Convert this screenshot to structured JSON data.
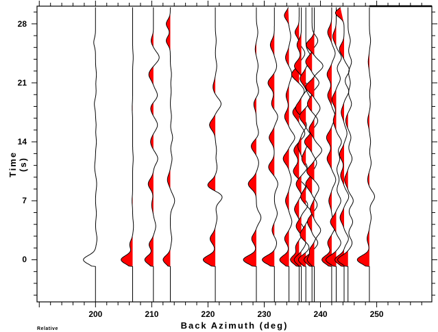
{
  "chart_data": {
    "type": "line",
    "subtype": "seismic-record-section (wiggle traces, negative lobes filled red)",
    "title": "",
    "xlabel": "Back Azimuth (deg)",
    "ylabel": "Time (s)",
    "footnote": "Relative",
    "xlim": [
      189.6,
      259.8
    ],
    "ylim": [
      -5.0,
      30.1
    ],
    "x_ticks": [
      200,
      210,
      220,
      230,
      240,
      250
    ],
    "y_ticks": [
      0,
      7,
      14,
      21,
      28
    ],
    "x_minor_step": 2,
    "y_minor_step": 1.4,
    "grid": false,
    "fill_color": "#ff0000",
    "line_color": "#000000",
    "traces": [
      {
        "baz": 200.0,
        "fill": false,
        "top": 30,
        "pulses": [
          [
            0,
            -4.2,
            0.5
          ],
          [
            2.5,
            0.5,
            0.6
          ],
          [
            5.5,
            0.3,
            0.6
          ],
          [
            9,
            0.4,
            0.7
          ],
          [
            11,
            -0.3,
            0.6
          ],
          [
            14,
            0.3,
            0.6
          ],
          [
            16,
            0.2,
            0.5
          ],
          [
            18.5,
            -0.4,
            0.5
          ],
          [
            20,
            0.2,
            0.6
          ],
          [
            22,
            0.3,
            0.6
          ],
          [
            25.8,
            -0.6,
            0.5
          ]
        ]
      },
      {
        "baz": 206.6,
        "fill": true,
        "top": 30,
        "pulses": [
          [
            0,
            -4.0,
            0.5
          ],
          [
            1.8,
            -1.0,
            0.5
          ],
          [
            4,
            0.3,
            0.6
          ],
          [
            7,
            -0.2,
            0.5
          ],
          [
            12,
            0.2,
            0.6
          ],
          [
            18,
            -0.15,
            0.6
          ],
          [
            24,
            0.2,
            0.6
          ]
        ]
      },
      {
        "baz": 210.3,
        "fill": true,
        "top": 30,
        "pulses": [
          [
            0,
            -3.0,
            0.5
          ],
          [
            1.8,
            -1.5,
            0.5
          ],
          [
            4,
            0.8,
            0.6
          ],
          [
            6.5,
            -0.6,
            0.6
          ],
          [
            9,
            -1.8,
            0.6
          ],
          [
            12,
            1.5,
            0.6
          ],
          [
            14,
            -1.0,
            0.6
          ],
          [
            16,
            1.4,
            0.6
          ],
          [
            18,
            -1.0,
            0.6
          ],
          [
            19.5,
            1.4,
            0.6
          ],
          [
            22,
            -1.6,
            0.6
          ],
          [
            24,
            2.0,
            0.6
          ],
          [
            26,
            -0.8,
            0.5
          ]
        ]
      },
      {
        "baz": 213.3,
        "fill": true,
        "top": 30,
        "pulses": [
          [
            0,
            -2.5,
            0.5
          ],
          [
            2.5,
            0.5,
            0.6
          ],
          [
            7,
            1.5,
            0.7
          ],
          [
            9.5,
            -1.0,
            0.6
          ],
          [
            12,
            0.6,
            0.6
          ],
          [
            14.5,
            0.8,
            0.6
          ],
          [
            17,
            0.4,
            0.6
          ],
          [
            20,
            0.3,
            0.6
          ],
          [
            22,
            0.4,
            0.6
          ],
          [
            26,
            -1.4,
            0.5
          ],
          [
            28,
            -1.4,
            0.5
          ]
        ]
      },
      {
        "baz": 221.3,
        "fill": true,
        "top": 30,
        "pulses": [
          [
            0,
            -4.2,
            0.5
          ],
          [
            2.5,
            -1.8,
            0.55
          ],
          [
            5,
            0.6,
            0.6
          ],
          [
            7.5,
            2.5,
            0.6
          ],
          [
            8.8,
            -2.8,
            0.55
          ],
          [
            11,
            0.6,
            0.6
          ],
          [
            13,
            0.4,
            0.6
          ],
          [
            16,
            -2.0,
            0.6
          ],
          [
            18.5,
            2.0,
            0.6
          ],
          [
            20.5,
            -0.8,
            0.6
          ],
          [
            23,
            0.5,
            0.6
          ],
          [
            26,
            0.3,
            0.6
          ]
        ]
      },
      {
        "baz": 228.6,
        "fill": true,
        "top": 30,
        "pulses": [
          [
            0,
            -4.5,
            0.5
          ],
          [
            2.5,
            -1.6,
            0.55
          ],
          [
            5,
            1.6,
            0.6
          ],
          [
            9,
            -2.8,
            0.6
          ],
          [
            11.5,
            0.8,
            0.6
          ],
          [
            13.5,
            -1.8,
            0.6
          ],
          [
            15,
            0.8,
            0.6
          ],
          [
            18.5,
            -0.9,
            0.6
          ],
          [
            20,
            0.8,
            0.6
          ],
          [
            23,
            0.6,
            0.6
          ],
          [
            25,
            -0.4,
            0.5
          ],
          [
            27,
            0.5,
            0.6
          ]
        ]
      },
      {
        "baz": 231.8,
        "fill": true,
        "top": 30,
        "pulses": [
          [
            0,
            -4.2,
            0.5
          ],
          [
            2,
            0.8,
            0.55
          ],
          [
            3.5,
            -0.8,
            0.55
          ],
          [
            5.5,
            1.0,
            0.6
          ],
          [
            9,
            1.2,
            0.6
          ],
          [
            11,
            -2.0,
            0.6
          ],
          [
            14.5,
            -1.8,
            0.6
          ],
          [
            17,
            1.2,
            0.6
          ],
          [
            18.5,
            -1.0,
            0.6
          ],
          [
            21,
            -2.2,
            0.6
          ],
          [
            23,
            0.8,
            0.6
          ],
          [
            25.5,
            -1.4,
            0.6
          ]
        ]
      },
      {
        "baz": 234.4,
        "fill": true,
        "top": 30,
        "pulses": [
          [
            0,
            -3.2,
            0.5
          ],
          [
            2.5,
            -1.5,
            0.55
          ],
          [
            4.5,
            1.0,
            0.6
          ],
          [
            7,
            -1.2,
            0.6
          ],
          [
            9.5,
            0.8,
            0.6
          ],
          [
            12,
            -2.0,
            0.6
          ],
          [
            14.5,
            2.0,
            0.6
          ],
          [
            17,
            -1.5,
            0.6
          ],
          [
            19.5,
            -1.0,
            0.6
          ],
          [
            22,
            1.0,
            0.6
          ],
          [
            24,
            -1.2,
            0.6
          ],
          [
            26.5,
            0.6,
            0.6
          ],
          [
            29,
            -1.6,
            0.5
          ]
        ]
      },
      {
        "baz": 236.2,
        "fill": true,
        "top": 30,
        "pulses": [
          [
            0,
            -3.0,
            0.5
          ],
          [
            1.5,
            -1.2,
            0.5
          ],
          [
            3.5,
            1.8,
            0.6
          ],
          [
            6,
            -1.6,
            0.6
          ],
          [
            8.5,
            2.4,
            0.6
          ],
          [
            10.5,
            -2.0,
            0.6
          ],
          [
            13,
            -1.8,
            0.6
          ],
          [
            15,
            2.0,
            0.6
          ],
          [
            17.5,
            -2.2,
            0.6
          ],
          [
            20,
            1.8,
            0.6
          ],
          [
            22,
            -2.6,
            0.6
          ],
          [
            24.5,
            2.0,
            0.6
          ],
          [
            27,
            -1.4,
            0.5
          ]
        ]
      },
      {
        "baz": 236.6,
        "fill": true,
        "top": 30,
        "pulses": [
          [
            0,
            -2.5,
            0.5
          ],
          [
            2,
            1.5,
            0.55
          ],
          [
            4,
            -1.8,
            0.6
          ],
          [
            6.5,
            2.2,
            0.6
          ],
          [
            9,
            -1.8,
            0.6
          ],
          [
            11,
            2.0,
            0.6
          ],
          [
            13.5,
            -1.2,
            0.6
          ],
          [
            16,
            1.8,
            0.6
          ],
          [
            18,
            -2.0,
            0.6
          ],
          [
            20.5,
            2.2,
            0.6
          ],
          [
            23,
            -2.4,
            0.6
          ],
          [
            25.5,
            -1.5,
            0.6
          ]
        ]
      },
      {
        "baz": 237.4,
        "fill": true,
        "top": 30,
        "pulses": [
          [
            0,
            -2.6,
            0.5
          ],
          [
            1.5,
            1.2,
            0.5
          ],
          [
            3,
            -2.0,
            0.6
          ],
          [
            5.5,
            2.0,
            0.6
          ],
          [
            7.5,
            -1.8,
            0.6
          ],
          [
            10,
            2.2,
            0.6
          ],
          [
            12,
            -1.4,
            0.6
          ],
          [
            14.5,
            2.0,
            0.6
          ],
          [
            17,
            -2.2,
            0.6
          ],
          [
            19,
            1.6,
            0.6
          ],
          [
            21.5,
            -2.0,
            0.6
          ],
          [
            24,
            1.8,
            0.6
          ]
        ]
      },
      {
        "baz": 238.5,
        "fill": true,
        "top": 30,
        "pulses": [
          [
            0,
            -2.8,
            0.5
          ],
          [
            2,
            2.0,
            0.55
          ],
          [
            4.5,
            -1.6,
            0.6
          ],
          [
            6.5,
            1.8,
            0.6
          ],
          [
            9,
            -2.2,
            0.6
          ],
          [
            11.5,
            1.6,
            0.6
          ],
          [
            14,
            -2.6,
            0.6
          ],
          [
            16.5,
            2.0,
            0.6
          ],
          [
            18.5,
            -1.6,
            0.6
          ],
          [
            21,
            2.4,
            0.6
          ],
          [
            23.5,
            -2.2,
            0.6
          ],
          [
            26,
            2.0,
            0.6
          ]
        ]
      },
      {
        "baz": 238.9,
        "fill": true,
        "top": 30,
        "pulses": [
          [
            0,
            -2.4,
            0.5
          ],
          [
            1.2,
            -1.5,
            0.45
          ],
          [
            3.5,
            2.2,
            0.6
          ],
          [
            6,
            -1.4,
            0.6
          ],
          [
            8.5,
            1.6,
            0.6
          ],
          [
            10.5,
            -2.6,
            0.6
          ],
          [
            13,
            2.6,
            0.6
          ],
          [
            15.5,
            -1.8,
            0.6
          ],
          [
            18,
            2.0,
            0.6
          ],
          [
            20.5,
            -3.0,
            0.6
          ],
          [
            23,
            3.0,
            0.6
          ],
          [
            25.5,
            -2.8,
            0.6
          ]
        ]
      },
      {
        "baz": 242.0,
        "fill": true,
        "top": 30,
        "pulses": [
          [
            0,
            -3.4,
            0.5
          ],
          [
            2,
            -1.4,
            0.55
          ],
          [
            4,
            1.2,
            0.6
          ],
          [
            7,
            -1.0,
            0.6
          ],
          [
            9.5,
            1.4,
            0.6
          ],
          [
            12,
            -1.6,
            0.6
          ],
          [
            14.5,
            -1.8,
            0.6
          ],
          [
            17,
            1.2,
            0.6
          ],
          [
            19.5,
            -1.4,
            0.6
          ],
          [
            22,
            -1.6,
            0.6
          ],
          [
            24.5,
            1.2,
            0.6
          ],
          [
            27,
            -1.4,
            0.6
          ]
        ]
      },
      {
        "baz": 242.8,
        "fill": true,
        "top": 30,
        "pulses": [
          [
            0,
            -3.6,
            0.5
          ],
          [
            2,
            1.6,
            0.55
          ],
          [
            4.5,
            -2.0,
            0.6
          ],
          [
            7,
            1.6,
            0.6
          ],
          [
            9.5,
            1.0,
            0.6
          ],
          [
            12,
            1.2,
            0.6
          ],
          [
            14,
            1.8,
            0.6
          ],
          [
            16.5,
            -1.0,
            0.6
          ],
          [
            19,
            -1.5,
            0.6
          ],
          [
            21.5,
            1.4,
            0.6
          ],
          [
            24,
            1.8,
            0.6
          ],
          [
            26.5,
            -1.2,
            0.6
          ]
        ]
      },
      {
        "baz": 244.2,
        "fill": true,
        "top": 30,
        "pulses": [
          [
            0,
            -3.2,
            0.5
          ],
          [
            2.5,
            1.5,
            0.55
          ],
          [
            5,
            -1.4,
            0.6
          ],
          [
            7.5,
            1.6,
            0.6
          ],
          [
            10,
            -1.2,
            0.6
          ],
          [
            12.5,
            -1.6,
            0.6
          ],
          [
            15,
            1.0,
            0.6
          ],
          [
            17.5,
            -1.0,
            0.6
          ],
          [
            20,
            1.6,
            0.6
          ],
          [
            22.5,
            1.8,
            0.6
          ],
          [
            25,
            -1.6,
            0.6
          ],
          [
            29.3,
            -3.0,
            0.5
          ]
        ]
      },
      {
        "baz": 244.9,
        "fill": true,
        "top": 30,
        "pulses": [
          [
            0,
            -3.6,
            0.5
          ],
          [
            2,
            1.4,
            0.55
          ],
          [
            4.5,
            1.6,
            0.6
          ],
          [
            7,
            1.8,
            0.6
          ],
          [
            9.5,
            -1.2,
            0.6
          ],
          [
            12,
            1.4,
            0.6
          ],
          [
            14.5,
            1.0,
            0.6
          ],
          [
            16.5,
            -0.8,
            0.6
          ],
          [
            18.5,
            1.2,
            0.6
          ],
          [
            21,
            0.8,
            0.6
          ],
          [
            23.5,
            1.2,
            0.6
          ],
          [
            26,
            0.8,
            0.6
          ]
        ]
      },
      {
        "baz": 248.7,
        "fill": true,
        "top": 30,
        "pulses": [
          [
            0,
            -4.2,
            0.5
          ],
          [
            2.5,
            -0.8,
            0.55
          ],
          [
            5,
            0.6,
            0.6
          ],
          [
            7.5,
            1.8,
            0.6
          ],
          [
            9.5,
            -0.6,
            0.6
          ],
          [
            11.5,
            0.6,
            0.6
          ],
          [
            14,
            0.4,
            0.6
          ],
          [
            16.5,
            -0.6,
            0.6
          ],
          [
            18.5,
            0.3,
            0.6
          ],
          [
            21,
            0.4,
            0.6
          ],
          [
            23.5,
            -0.4,
            0.6
          ],
          [
            26,
            0.4,
            0.6
          ]
        ]
      }
    ]
  }
}
